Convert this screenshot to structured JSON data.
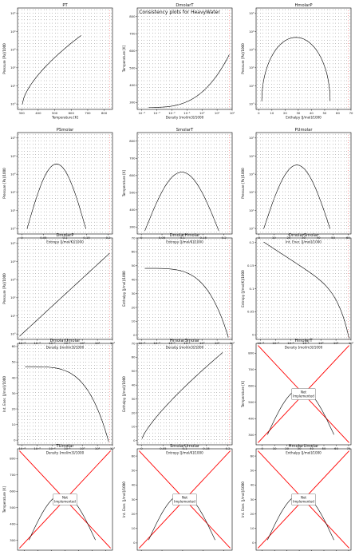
{
  "title": "Consistency plots for HeavyWater",
  "colors": {
    "consistent": "#000000",
    "reference": "#ff0000",
    "frame": "#000000"
  },
  "chart_data": [
    {
      "type": "scatter",
      "title": "PT",
      "xlabel": "Temperature [K]",
      "ylabel": "Pressure [Pa]/1000",
      "xlog": false,
      "ylog": true,
      "xlim": [
        275,
        850
      ],
      "ylim": [
        0.5,
        200000.0
      ],
      "xticks": [
        300,
        400,
        500,
        600,
        700,
        800
      ],
      "yticks": [
        1,
        10,
        100,
        1000,
        10000,
        100000
      ],
      "notImplemented": false,
      "dome": "pt"
    },
    {
      "type": "scatter",
      "title": "DmolarT",
      "xlabel": "Density [mol/m3]/1000",
      "ylabel": "Temperature [K]",
      "xlog": true,
      "ylog": false,
      "xlim": [
        5e-05,
        100
      ],
      "ylim": [
        260,
        850
      ],
      "xticks": [
        0.0001,
        0.001,
        0.01,
        0.1,
        1,
        10,
        100
      ],
      "yticks": [
        300,
        400,
        500,
        600,
        700,
        800
      ],
      "notImplemented": false,
      "dome": "dt"
    },
    {
      "type": "scatter",
      "title": "HmolarP",
      "xlabel": "Enthalpy [J/mol]/1000",
      "ylabel": "Pressure [Pa]/1000",
      "xlog": false,
      "ylog": true,
      "xlim": [
        -2,
        70
      ],
      "ylim": [
        0.5,
        200000.0
      ],
      "xticks": [
        0,
        10,
        20,
        30,
        40,
        50,
        60,
        70
      ],
      "yticks": [
        1,
        10,
        100,
        1000,
        10000,
        100000
      ],
      "notImplemented": false,
      "dome": "hp"
    },
    {
      "type": "scatter",
      "title": "PSmolar",
      "xlabel": "Entropy [J/mol/K]/1000",
      "ylabel": "Pressure [Pa]/1000",
      "xlog": false,
      "ylog": true,
      "xlim": [
        -0.01,
        0.21
      ],
      "ylim": [
        0.5,
        200000.0
      ],
      "xticks": [
        0,
        0.05,
        0.1,
        0.15,
        0.2
      ],
      "yticks": [
        1,
        10,
        100,
        1000,
        10000,
        100000
      ],
      "notImplemented": false,
      "dome": "sp"
    },
    {
      "type": "scatter",
      "title": "SmolarT",
      "xlabel": "Entropy [J/mol/K]/1000",
      "ylabel": "Temperature [K]",
      "xlog": false,
      "ylog": false,
      "xlim": [
        -0.01,
        0.22
      ],
      "ylim": [
        260,
        850
      ],
      "xticks": [
        0,
        0.05,
        0.1,
        0.15,
        0.2
      ],
      "yticks": [
        300,
        400,
        500,
        600,
        700,
        800
      ],
      "notImplemented": false,
      "dome": "st"
    },
    {
      "type": "scatter",
      "title": "PUmolar",
      "xlabel": "Int. Ener. [J/mol]/1000",
      "ylabel": "Pressure [Pa]/1000",
      "xlog": false,
      "ylog": true,
      "xlim": [
        -2,
        62
      ],
      "ylim": [
        0.5,
        200000.0
      ],
      "xticks": [
        0,
        10,
        20,
        30,
        40,
        50,
        60
      ],
      "yticks": [
        1,
        10,
        100,
        1000,
        10000,
        100000
      ],
      "notImplemented": false,
      "dome": "up"
    },
    {
      "type": "scatter",
      "title": "DmolarP",
      "xlabel": "Density [mol/m3]/1000",
      "ylabel": "Pressure [Pa]/1000",
      "xlog": true,
      "ylog": true,
      "xlim": [
        5e-05,
        100
      ],
      "ylim": [
        0.5,
        200000.0
      ],
      "xticks": [
        0.0001,
        0.001,
        0.01,
        0.1,
        1,
        10,
        100
      ],
      "yticks": [
        1,
        10,
        100,
        1000,
        10000,
        100000
      ],
      "notImplemented": false,
      "dome": "dp"
    },
    {
      "type": "scatter",
      "title": "DmolarHmolar",
      "xlabel": "Density [mol/m3]/1000",
      "ylabel": "Enthalpy [J/mol]/1000",
      "xlog": true,
      "ylog": false,
      "xlim": [
        5e-05,
        100
      ],
      "ylim": [
        -3,
        70
      ],
      "xticks": [
        0.0001,
        0.001,
        0.01,
        0.1,
        1,
        10,
        100
      ],
      "yticks": [
        0,
        10,
        20,
        30,
        40,
        50,
        60,
        70
      ],
      "notImplemented": false,
      "dome": "dh"
    },
    {
      "type": "scatter",
      "title": "DmolarSmolar",
      "xlabel": "Density [mol/m3]/1000",
      "ylabel": "Entropy [J/mol/K]/1000",
      "xlog": true,
      "ylog": false,
      "xlim": [
        5e-05,
        100
      ],
      "ylim": [
        -0.01,
        0.21
      ],
      "xticks": [
        0.0001,
        0.001,
        0.01,
        0.1,
        1,
        10,
        100
      ],
      "yticks": [
        0,
        0.05,
        0.1,
        0.15,
        0.2
      ],
      "notImplemented": false,
      "dome": "ds"
    },
    {
      "type": "scatter",
      "title": "DmolarUmolar",
      "xlabel": "Density [mol/m3]/1000",
      "ylabel": "Int. Ener. [J/mol]/1000",
      "xlog": true,
      "ylog": false,
      "xlim": [
        5e-05,
        100
      ],
      "ylim": [
        -3,
        62
      ],
      "xticks": [
        0.0001,
        0.001,
        0.01,
        0.1,
        1,
        10,
        100
      ],
      "yticks": [
        0,
        10,
        20,
        30,
        40,
        50,
        60
      ],
      "notImplemented": false,
      "dome": "du"
    },
    {
      "type": "scatter",
      "title": "HmolarSmolar",
      "xlabel": "Entropy [J/mol/K]/1000",
      "ylabel": "Enthalpy [J/mol]/1000",
      "xlog": false,
      "ylog": false,
      "xlim": [
        -0.01,
        0.21
      ],
      "ylim": [
        -3,
        70
      ],
      "xticks": [
        0,
        0.05,
        0.1,
        0.15,
        0.2
      ],
      "yticks": [
        0,
        10,
        20,
        30,
        40,
        50,
        60,
        70
      ],
      "notImplemented": false,
      "dome": "sh"
    },
    {
      "type": "scatter",
      "title": "HmolarT",
      "xlabel": "Enthalpy [J/mol]/1000",
      "ylabel": "Temperature [K]",
      "xlog": false,
      "ylog": false,
      "xlim": [
        -5,
        72
      ],
      "ylim": [
        240,
        860
      ],
      "xticks": [
        0,
        10,
        20,
        30,
        40,
        50,
        60,
        70
      ],
      "yticks": [
        300,
        400,
        500,
        600,
        700,
        800
      ],
      "notImplemented": true,
      "note": "Not\nImplemented",
      "dome": "ht"
    },
    {
      "type": "scatter",
      "title": "TUmolar",
      "xlabel": "Int. Ener. [J/mol]/1000",
      "ylabel": "Temperature [K]",
      "xlog": false,
      "ylog": false,
      "xlim": [
        -5,
        65
      ],
      "ylim": [
        240,
        860
      ],
      "xticks": [
        0,
        10,
        20,
        30,
        40,
        50,
        60
      ],
      "yticks": [
        300,
        400,
        500,
        600,
        700,
        800
      ],
      "notImplemented": true,
      "note": "Not\nImplemented",
      "dome": "ut"
    },
    {
      "type": "scatter",
      "title": "SmolarUmolar",
      "xlabel": "Entropy [J/mol/K]/1000",
      "ylabel": "Int. Ener. [J/mol]/1000",
      "xlog": false,
      "ylog": false,
      "xlim": [
        -0.01,
        0.22
      ],
      "ylim": [
        -5,
        65
      ],
      "xticks": [
        0,
        0.05,
        0.1,
        0.15,
        0.2
      ],
      "yticks": [
        0,
        10,
        20,
        30,
        40,
        50,
        60
      ],
      "notImplemented": true,
      "note": "Not\nImplemented",
      "dome": "su"
    },
    {
      "type": "scatter",
      "title": "HmolarUmolar",
      "xlabel": "Enthalpy [J/mol]/1000",
      "ylabel": "Int. Ener. [J/mol]/1000",
      "xlog": false,
      "ylog": false,
      "xlim": [
        -5,
        72
      ],
      "ylim": [
        -5,
        65
      ],
      "xticks": [
        0,
        10,
        20,
        30,
        40,
        50,
        60,
        70
      ],
      "yticks": [
        0,
        10,
        20,
        30,
        40,
        50,
        60
      ],
      "notImplemented": true,
      "note": "Not\nImplemented",
      "dome": "hu"
    }
  ]
}
